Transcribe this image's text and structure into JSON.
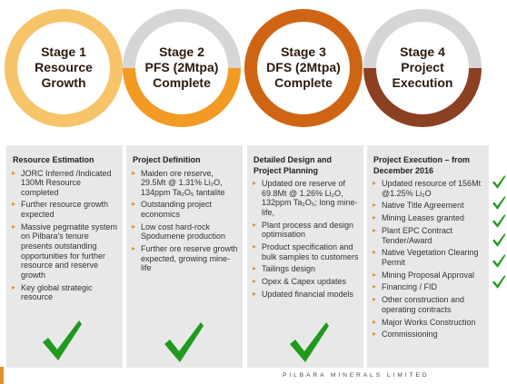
{
  "stages": [
    {
      "id": "stage-1",
      "lines": [
        "Stage 1",
        "Resource",
        "Growth"
      ],
      "ring_color": "#f7c46a",
      "progress": 1.0
    },
    {
      "id": "stage-2",
      "lines": [
        "Stage 2",
        "PFS (2Mtpa)",
        "Complete"
      ],
      "ring_color": "#f39a24",
      "progress": 0.5
    },
    {
      "id": "stage-3",
      "lines": [
        "Stage 3",
        "DFS (2Mtpa)",
        "Complete"
      ],
      "ring_color": "#cf6513",
      "progress": 1.0
    },
    {
      "id": "stage-4",
      "lines": [
        "Stage 4",
        "Project",
        "Execution"
      ],
      "ring_color": "#8b4022",
      "progress": 0.5
    }
  ],
  "panels": [
    {
      "id": "resource-estimation",
      "title": "Resource Estimation",
      "items": [
        "JORC Inferred /Indicated 130Mt Resource completed",
        "Further resource growth expected",
        "Massive pegmatite system on Pilbara's tenure presents outstanding opportunities for further resource and reserve growth",
        "Key global strategic resource"
      ]
    },
    {
      "id": "project-definition",
      "title": "Project Definition",
      "items": [
        "Maiden ore reserve, 29.5Mt @ 1.31% Li₂O, 134ppm Ta₂O₅ tantalite",
        "Outstanding project economics",
        "Low cost hard-rock Spodumene production",
        "Further ore reserve growth expected, growing mine-life"
      ]
    },
    {
      "id": "detailed-design",
      "title": "Detailed Design and Project Planning",
      "items": [
        "Updated ore reserve of 69.8Mt @ 1.26% Li₂O, 132ppm Ta₂O₅; long mine-life,",
        "Plant process and design optimisation",
        "Product specification and bulk samples to customers",
        "Tailings design",
        "Opex & Capex updates",
        "Updated financial models"
      ]
    },
    {
      "id": "project-execution",
      "title": "Project Execution – from December 2016",
      "items": [
        "Updated resource of 156Mt @1.25% Li₂O",
        "Native Title Agreement",
        "Mining Leases granted",
        "Plant EPC Contract Tender/Award",
        "Native Vegetation Clearing Permit",
        "Mining Proposal Approval",
        "Financing / FID",
        "Other construction and operating contracts",
        "Major Works Construction",
        "Commissioning"
      ]
    }
  ],
  "footer": {
    "company": "PILBARA MINERALS LIMITED"
  },
  "colors": {
    "check": "#1f9a1f",
    "ring_gray": "#d6d6d6",
    "panel_bg": "#e8e8e8",
    "bullet": "#e0922c"
  }
}
